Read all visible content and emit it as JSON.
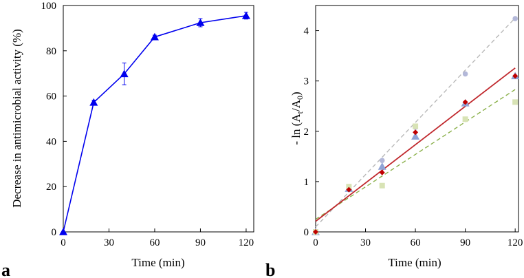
{
  "chart_data": [
    {
      "panel_label": "a",
      "type": "line",
      "xlabel": "Time (min)",
      "ylabel": "Decrease in antimicrobial activity (%)",
      "xlim": [
        0,
        125
      ],
      "ylim": [
        0,
        100
      ],
      "xticks": [
        0,
        30,
        60,
        90,
        120
      ],
      "yticks": [
        0,
        20,
        40,
        60,
        80,
        100
      ],
      "grid": false,
      "color": "#0000ee",
      "marker": "triangle",
      "series": [
        {
          "x": [
            0,
            20,
            40,
            60,
            90,
            120
          ],
          "y": [
            0,
            57.2,
            69.8,
            86.1,
            92.4,
            95.5
          ],
          "error": [
            0,
            1.0,
            4.8,
            0.8,
            1.8,
            1.5
          ]
        }
      ]
    },
    {
      "panel_label": "b",
      "type": "scatter",
      "xlabel": "Time (min)",
      "ylabel_parts": [
        "- ln (A",
        "t",
        "/A",
        "0",
        ")"
      ],
      "xlim": [
        0,
        122
      ],
      "ylim": [
        0,
        4.5
      ],
      "xticks": [
        0,
        30,
        60,
        90,
        120
      ],
      "yticks": [
        0,
        1,
        2,
        3,
        4
      ],
      "grid": false,
      "series": [
        {
          "marker": "circle",
          "color": "#b3b8d9",
          "x": [
            0,
            20,
            40,
            60,
            90,
            120
          ],
          "y": [
            0,
            0.84,
            1.42,
            2.08,
            3.14,
            4.24
          ],
          "fit": {
            "slope": 0.0346,
            "intercept": 0.1,
            "color": "#b8b8b8",
            "dash": true
          }
        },
        {
          "marker": "triangle",
          "color": "#8fa3d6",
          "x": [
            0,
            20,
            40,
            60,
            90,
            120
          ],
          "y": [
            0,
            0.86,
            1.3,
            1.9,
            2.56,
            3.1
          ],
          "fit": null
        },
        {
          "marker": "square",
          "color": "#d8e3b5",
          "x": [
            0,
            20,
            40,
            60,
            90,
            120
          ],
          "y": [
            0,
            0.9,
            0.92,
            2.1,
            2.24,
            2.58
          ],
          "fit": {
            "slope": 0.0215,
            "intercept": 0.25,
            "color": "#8ab04a",
            "dash": true
          }
        },
        {
          "marker": "diamond",
          "color": "#c00000",
          "x": [
            0,
            20,
            40,
            60,
            90,
            120
          ],
          "y": [
            0,
            0.84,
            1.18,
            1.98,
            2.58,
            3.1
          ],
          "fit": {
            "slope": 0.0254,
            "intercept": 0.21,
            "color": "#c0282d",
            "dash": false
          }
        }
      ]
    }
  ]
}
